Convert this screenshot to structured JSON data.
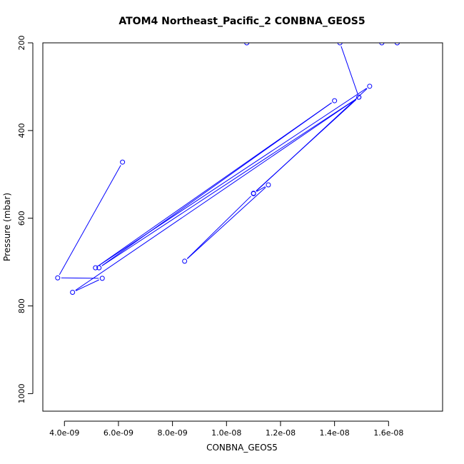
{
  "chart_data": {
    "type": "scatter",
    "title": "ATOM4 Northeast_Pacific_2 CONBNA_GEOS5",
    "xlabel": "CONBNA_GEOS5",
    "ylabel": "Pressure (mbar)",
    "xlim": [
      3.2e-09,
      1.8e-08
    ],
    "ylim": [
      1040,
      200
    ],
    "x_ticks": [
      4e-09,
      6e-09,
      8e-09,
      1e-08,
      1.2e-08,
      1.4e-08,
      1.6e-08
    ],
    "x_tick_labels": [
      "4.0e-09",
      "6.0e-09",
      "8.0e-09",
      "1.0e-08",
      "1.2e-08",
      "1.4e-08",
      "1.6e-08"
    ],
    "y_ticks": [
      200,
      400,
      600,
      800,
      1000
    ],
    "y_tick_labels": [
      "200",
      "400",
      "600",
      "800",
      "1000"
    ],
    "grid": false,
    "legend": "none",
    "color": "#0000ff",
    "series": [
      {
        "x": [
          6.15e-09,
          3.75e-09,
          5.4e-09,
          4.3e-09,
          1.49e-08,
          5.28e-09,
          1.4e-08,
          5.15e-09,
          1.53e-08,
          1.1e-08,
          8.45e-09,
          1.155e-08,
          1.1e-08,
          1.49e-08,
          1.42e-08,
          1.632e-08,
          1.575e-08,
          1.075e-08
        ],
        "y": [
          472,
          736,
          737,
          769,
          324,
          713,
          332,
          713,
          299,
          544,
          698,
          524,
          543,
          324,
          200,
          200,
          200,
          200
        ]
      }
    ]
  }
}
